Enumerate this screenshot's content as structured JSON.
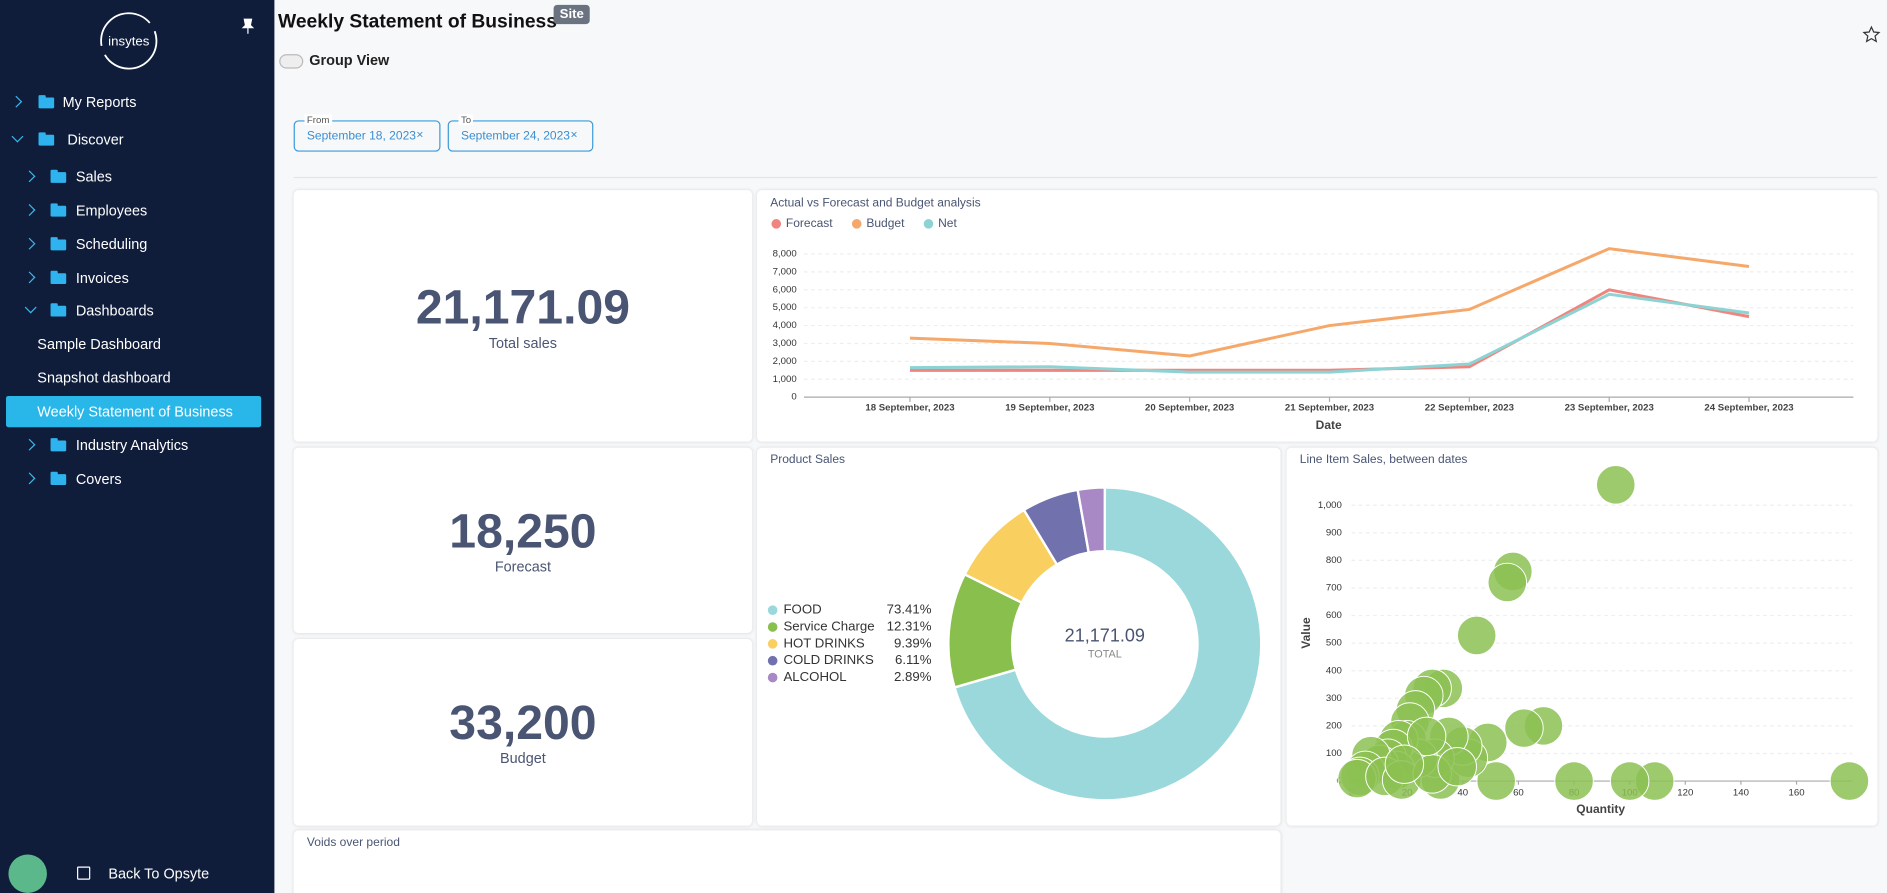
{
  "sidebar": {
    "logo": "insytes",
    "items": [
      "My Reports",
      "Discover",
      "Sales",
      "Employees",
      "Scheduling",
      "Invoices",
      "Dashboards",
      "Sample Dashboard",
      "Snapshot dashboard",
      "Weekly Statement of Business",
      "Industry Analytics",
      "Covers"
    ],
    "footer": "Back To Opsyte"
  },
  "header": {
    "title": "Weekly Statement of Business",
    "badge": "Site",
    "toggle": "Group View"
  },
  "filters": [
    {
      "label": "From",
      "value": "September 18, 2023"
    },
    {
      "label": "To",
      "value": "September 24, 2023"
    }
  ],
  "kpis": [
    {
      "value": "21,171.09",
      "label": "Total sales"
    },
    {
      "value": "18,250",
      "label": "Forecast"
    },
    {
      "value": "33,200",
      "label": "Budget"
    }
  ],
  "voids": {
    "title": "Voids over period"
  },
  "chart_data": [
    {
      "type": "line",
      "title": "Actual vs Forecast and Budget analysis",
      "categories": [
        "18 September, 2023",
        "19 September, 2023",
        "20 September, 2023",
        "21 September, 2023",
        "22 September, 2023",
        "23 September, 2023",
        "24 September, 2023"
      ],
      "xlabel": "Date",
      "series": [
        {
          "name": "Forecast",
          "color": "#f0857f",
          "values": [
            1500,
            1500,
            1500,
            1500,
            1700,
            6000,
            4500
          ]
        },
        {
          "name": "Budget",
          "color": "#f5a86a",
          "values": [
            3300,
            3000,
            2300,
            4000,
            4900,
            8300,
            7300
          ]
        },
        {
          "name": "Net",
          "color": "#8dd3d4",
          "values": [
            1650,
            1700,
            1400,
            1400,
            1850,
            5750,
            4700
          ]
        }
      ],
      "ylim": [
        0,
        8500
      ],
      "yticks": [
        0,
        {
          "value": 1000,
          "label": "1,000"
        },
        {
          "value": 2000,
          "label": "2,000"
        },
        {
          "value": 3000,
          "label": "3,000"
        },
        {
          "value": 4000,
          "label": "4,000"
        },
        {
          "value": 5000,
          "label": "5,000"
        },
        {
          "value": 6000,
          "label": "6,000"
        },
        {
          "value": 7000,
          "label": "7,000"
        },
        {
          "value": 8000,
          "label": "8,000"
        }
      ],
      "grid": true
    },
    {
      "type": "pie",
      "title": "Product Sales",
      "categories": [
        "FOOD",
        "Service Charge",
        "HOT DRINKS",
        "COLD DRINKS",
        "ALCOHOL"
      ],
      "values": [
        73.41,
        12.31,
        9.39,
        6.11,
        2.89
      ],
      "value_labels": [
        "73.41%",
        "12.31%",
        "9.39%",
        "6.11%",
        "2.89%"
      ],
      "colors": [
        "#9ad8dc",
        "#88bf4d",
        "#f9cf5f",
        "#7172ad",
        "#a989c5"
      ],
      "center_value": "21,171.09",
      "center_label": "TOTAL"
    },
    {
      "type": "scatter",
      "title": "Line Item Sales, between dates",
      "xlabel": "Quantity",
      "ylabel": "Value",
      "color": "#8cc152",
      "x": [
        95,
        58,
        56,
        45,
        69,
        62,
        49,
        179,
        109,
        100,
        80,
        52,
        32,
        33,
        29,
        26,
        23,
        21,
        20,
        42,
        40,
        35,
        30,
        24,
        17,
        15,
        13,
        16,
        10,
        7,
        5,
        3,
        2,
        12,
        18,
        29,
        38,
        27,
        19
      ],
      "y": [
        1074,
        760,
        720,
        528,
        200,
        192,
        140,
        0,
        0,
        0,
        0,
        0,
        4,
        336,
        336,
        310,
        258,
        214,
        150,
        83,
        127,
        162,
        83,
        83,
        150,
        118,
        83,
        39,
        61,
        92,
        39,
        17,
        9,
        17,
        4,
        26,
        52,
        162,
        61
      ],
      "xlim": [
        0,
        180
      ],
      "ylim": [
        0,
        1130
      ],
      "xticks": [
        0,
        20,
        40,
        60,
        80,
        100,
        120,
        140,
        160
      ],
      "yticks": [
        0,
        100,
        200,
        300,
        400,
        500,
        600,
        700,
        800,
        900,
        {
          "value": 1000,
          "label": "1,000"
        }
      ],
      "grid": true
    }
  ]
}
